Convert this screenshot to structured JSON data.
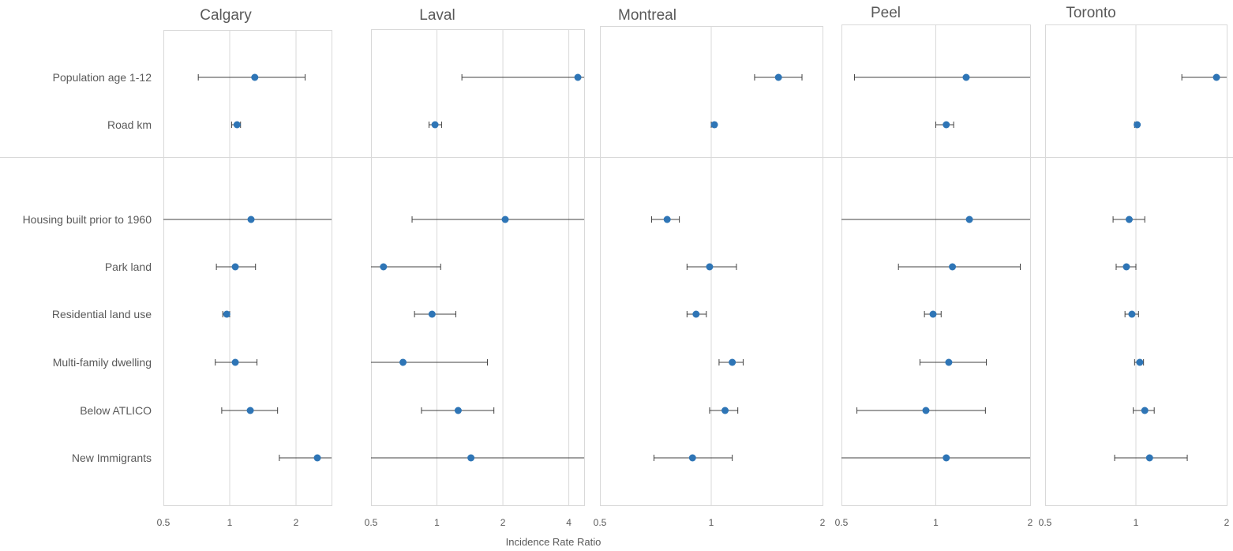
{
  "chart_data": {
    "type": "scatter",
    "subtype": "forest-plot",
    "title": "",
    "xlabel": "Incidence Rate Ratio",
    "ylabel": "",
    "x_scale": "log2",
    "grid": "vertical",
    "colors": {
      "point": "#2e75b6",
      "errorbar": "#404040",
      "grid": "#d9d9d9",
      "frame": "#d9d9d9",
      "text": "#595959"
    },
    "variables": [
      "Population age 1-12",
      "Road km",
      "Housing built prior to 1960",
      "Park land",
      "Residential land use",
      "Multi-family dwelling",
      "Below ATLICO",
      "New Immigrants"
    ],
    "panels": [
      {
        "name": "Calgary",
        "xlim": [
          0.5,
          2.9
        ],
        "ticks": [
          {
            "v": 0.5,
            "label": "0.5"
          },
          {
            "v": 1,
            "label": "1"
          },
          {
            "v": 2,
            "label": "2"
          }
        ],
        "series": [
          {
            "variable": "Population age 1-12",
            "irr": 1.3,
            "lo": 0.72,
            "hi": 2.2
          },
          {
            "variable": "Road km",
            "irr": 1.08,
            "lo": 1.02,
            "hi": 1.12
          },
          {
            "variable": "Housing built prior to 1960",
            "irr": 1.25,
            "lo": 0.5,
            "hi": 2.9
          },
          {
            "variable": "Park land",
            "irr": 1.06,
            "lo": 0.87,
            "hi": 1.31
          },
          {
            "variable": "Residential land use",
            "irr": 0.97,
            "lo": 0.93,
            "hi": 1.0
          },
          {
            "variable": "Multi-family dwelling",
            "irr": 1.06,
            "lo": 0.86,
            "hi": 1.33
          },
          {
            "variable": "Below ATLICO",
            "irr": 1.24,
            "lo": 0.92,
            "hi": 1.65
          },
          {
            "variable": "New Immigrants",
            "irr": 2.5,
            "lo": 1.68,
            "hi": 2.9
          }
        ]
      },
      {
        "name": "Laval",
        "xlim": [
          0.5,
          4.7
        ],
        "ticks": [
          {
            "v": 0.5,
            "label": "0.5"
          },
          {
            "v": 1,
            "label": "1"
          },
          {
            "v": 2,
            "label": "2"
          },
          {
            "v": 4,
            "label": "4"
          }
        ],
        "series": [
          {
            "variable": "Population age 1-12",
            "irr": 4.4,
            "lo": 1.3,
            "hi": 4.7
          },
          {
            "variable": "Road km",
            "irr": 0.98,
            "lo": 0.92,
            "hi": 1.05
          },
          {
            "variable": "Housing built prior to 1960",
            "irr": 2.05,
            "lo": 0.77,
            "hi": 4.7
          },
          {
            "variable": "Park land",
            "irr": 0.57,
            "lo": 0.5,
            "hi": 1.04
          },
          {
            "variable": "Residential land use",
            "irr": 0.95,
            "lo": 0.79,
            "hi": 1.22
          },
          {
            "variable": "Multi-family dwelling",
            "irr": 0.7,
            "lo": 0.5,
            "hi": 1.7
          },
          {
            "variable": "Below ATLICO",
            "irr": 1.25,
            "lo": 0.85,
            "hi": 1.82
          },
          {
            "variable": "New Immigrants",
            "irr": 1.43,
            "lo": 0.5,
            "hi": 4.7
          }
        ]
      },
      {
        "name": "Montreal",
        "xlim": [
          0.5,
          2
        ],
        "ticks": [
          {
            "v": 0.5,
            "label": "0.5"
          },
          {
            "v": 1,
            "label": "1"
          },
          {
            "v": 2,
            "label": "2"
          }
        ],
        "series": [
          {
            "variable": "Population age 1-12",
            "irr": 1.52,
            "lo": 1.31,
            "hi": 1.76
          },
          {
            "variable": "Road km",
            "irr": 1.02,
            "lo": 1.0,
            "hi": 1.03
          },
          {
            "variable": "Housing built prior to 1960",
            "irr": 0.76,
            "lo": 0.69,
            "hi": 0.82
          },
          {
            "variable": "Park land",
            "irr": 0.99,
            "lo": 0.86,
            "hi": 1.17
          },
          {
            "variable": "Residential land use",
            "irr": 0.91,
            "lo": 0.86,
            "hi": 0.97
          },
          {
            "variable": "Multi-family dwelling",
            "irr": 1.14,
            "lo": 1.05,
            "hi": 1.22
          },
          {
            "variable": "Below ATLICO",
            "irr": 1.09,
            "lo": 0.99,
            "hi": 1.18
          },
          {
            "variable": "New Immigrants",
            "irr": 0.89,
            "lo": 0.7,
            "hi": 1.14
          }
        ]
      },
      {
        "name": "Peel",
        "xlim": [
          0.5,
          2
        ],
        "ticks": [
          {
            "v": 0.5,
            "label": "0.5"
          },
          {
            "v": 1,
            "label": "1"
          },
          {
            "v": 2,
            "label": "2"
          }
        ],
        "series": [
          {
            "variable": "Population age 1-12",
            "irr": 1.25,
            "lo": 0.55,
            "hi": 2.0
          },
          {
            "variable": "Road km",
            "irr": 1.08,
            "lo": 1.0,
            "hi": 1.14
          },
          {
            "variable": "Housing built prior to 1960",
            "irr": 1.28,
            "lo": 0.5,
            "hi": 2.0
          },
          {
            "variable": "Park land",
            "irr": 1.13,
            "lo": 0.76,
            "hi": 1.86
          },
          {
            "variable": "Residential land use",
            "irr": 0.98,
            "lo": 0.92,
            "hi": 1.04
          },
          {
            "variable": "Multi-family dwelling",
            "irr": 1.1,
            "lo": 0.89,
            "hi": 1.45
          },
          {
            "variable": "Below ATLICO",
            "irr": 0.93,
            "lo": 0.56,
            "hi": 1.44
          },
          {
            "variable": "New Immigrants",
            "irr": 1.08,
            "lo": 0.5,
            "hi": 2.0
          }
        ]
      },
      {
        "name": "Toronto",
        "xlim": [
          0.5,
          2
        ],
        "ticks": [
          {
            "v": 0.5,
            "label": "0.5"
          },
          {
            "v": 1,
            "label": "1"
          },
          {
            "v": 2,
            "label": "2"
          }
        ],
        "series": [
          {
            "variable": "Population age 1-12",
            "irr": 1.85,
            "lo": 1.42,
            "hi": 2.0
          },
          {
            "variable": "Road km",
            "irr": 1.01,
            "lo": 0.99,
            "hi": 1.02
          },
          {
            "variable": "Housing built prior to 1960",
            "irr": 0.95,
            "lo": 0.84,
            "hi": 1.07
          },
          {
            "variable": "Park land",
            "irr": 0.93,
            "lo": 0.86,
            "hi": 1.0
          },
          {
            "variable": "Residential land use",
            "irr": 0.97,
            "lo": 0.92,
            "hi": 1.02
          },
          {
            "variable": "Multi-family dwelling",
            "irr": 1.03,
            "lo": 0.99,
            "hi": 1.06
          },
          {
            "variable": "Below ATLICO",
            "irr": 1.07,
            "lo": 0.98,
            "hi": 1.15
          },
          {
            "variable": "New Immigrants",
            "irr": 1.11,
            "lo": 0.85,
            "hi": 1.48
          }
        ]
      }
    ]
  }
}
